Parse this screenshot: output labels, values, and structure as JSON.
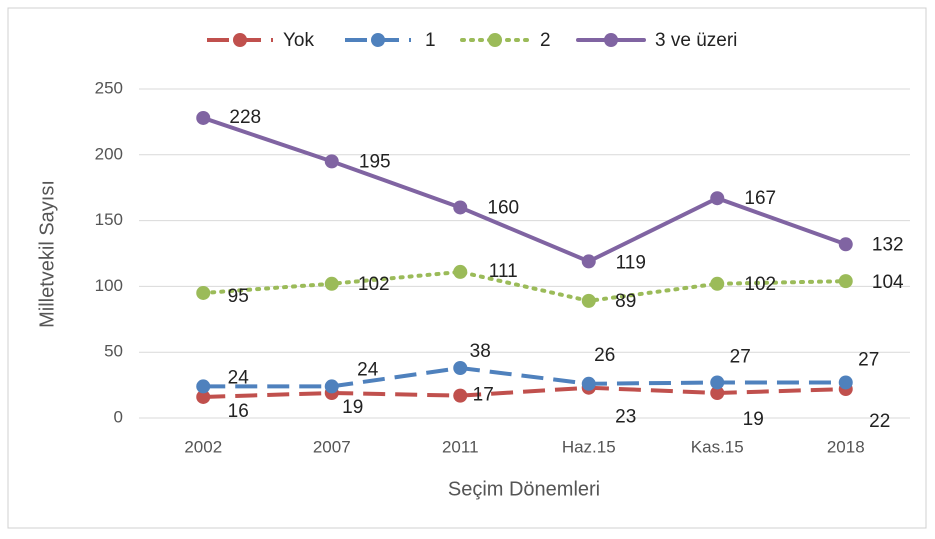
{
  "chart_data": {
    "type": "line",
    "y_label": "Milletvekil Sayısı",
    "x_label": "Seçim Dönemleri",
    "categories": [
      "2002",
      "2007",
      "2011",
      "Haz.15",
      "Kas.15",
      "2018"
    ],
    "series": [
      {
        "name": "Yok",
        "color": "#c0504d",
        "style": "dashed",
        "values": [
          16,
          19,
          17,
          23,
          19,
          22
        ]
      },
      {
        "name": "1",
        "color": "#4f81bd",
        "style": "dashed",
        "values": [
          24,
          24,
          38,
          26,
          27,
          27
        ]
      },
      {
        "name": "2",
        "color": "#9bbb59",
        "style": "dotted",
        "values": [
          95,
          102,
          111,
          89,
          102,
          104
        ]
      },
      {
        "name": "3 ve üzeri",
        "color": "#8064a2",
        "style": "solid",
        "values": [
          228,
          195,
          160,
          119,
          167,
          132
        ]
      }
    ],
    "ylim": [
      0,
      250
    ],
    "yticks": [
      0,
      50,
      100,
      150,
      200,
      250
    ],
    "grid": true,
    "legend": "top"
  }
}
